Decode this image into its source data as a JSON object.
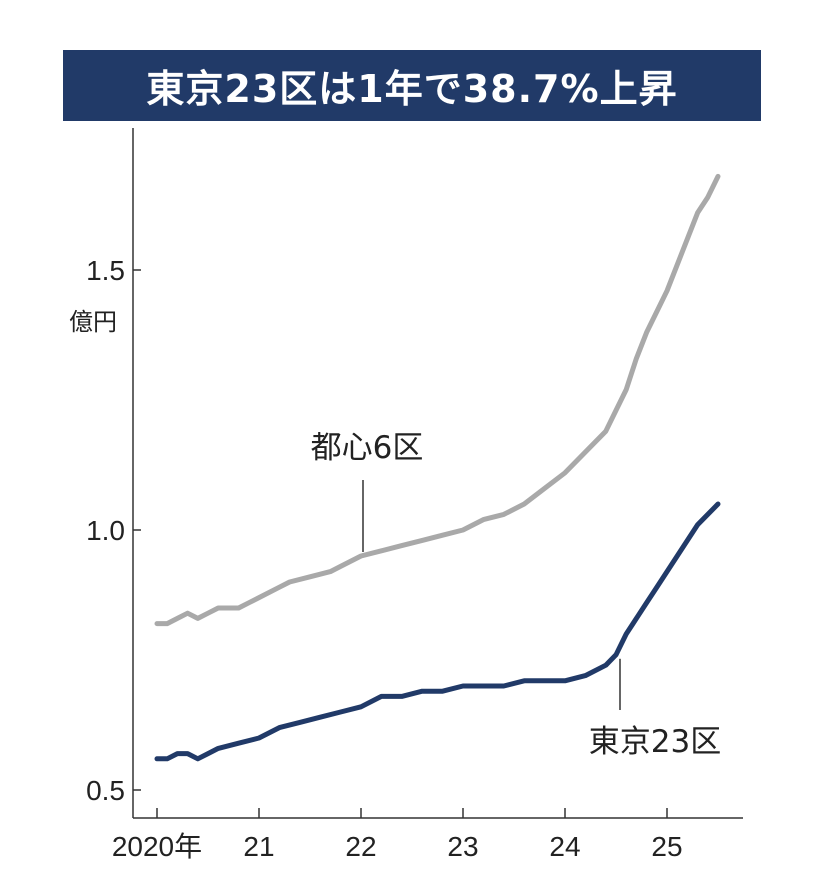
{
  "title": "東京23区は1年で38.7%上昇",
  "colors": {
    "banner": "#213a68",
    "tokyo23": "#213a68",
    "toshin6": "#a9a9a9",
    "axis": "#333333"
  },
  "chart_data": {
    "type": "line",
    "title": "東京23区は1年で38.7%上昇",
    "ylabel": "億円",
    "ylim": [
      0.5,
      1.7
    ],
    "xlim": [
      2020.0,
      2025.7
    ],
    "y_ticks": [
      {
        "value": 0.5,
        "label": "0.5"
      },
      {
        "value": 1.0,
        "label": "1.0"
      },
      {
        "value": 1.5,
        "label": "1.5"
      }
    ],
    "x_ticks": [
      {
        "value": 2020,
        "label": "2020年"
      },
      {
        "value": 2021,
        "label": "21"
      },
      {
        "value": 2022,
        "label": "22"
      },
      {
        "value": 2023,
        "label": "23"
      },
      {
        "value": 2024,
        "label": "24"
      },
      {
        "value": 2025,
        "label": "25"
      }
    ],
    "grid": false,
    "series": [
      {
        "name": "都心6区",
        "color": "#a9a9a9",
        "x": [
          2020.0,
          2020.1,
          2020.2,
          2020.3,
          2020.4,
          2020.5,
          2020.6,
          2020.8,
          2020.9,
          2021.0,
          2021.2,
          2021.3,
          2021.5,
          2021.7,
          2021.8,
          2022.0,
          2022.2,
          2022.4,
          2022.6,
          2022.8,
          2023.0,
          2023.2,
          2023.4,
          2023.6,
          2023.8,
          2024.0,
          2024.2,
          2024.4,
          2024.5,
          2024.6,
          2024.7,
          2024.8,
          2024.9,
          2025.0,
          2025.1,
          2025.2,
          2025.3,
          2025.4,
          2025.5
        ],
        "values": [
          0.82,
          0.82,
          0.83,
          0.84,
          0.83,
          0.84,
          0.85,
          0.85,
          0.86,
          0.87,
          0.89,
          0.9,
          0.91,
          0.92,
          0.93,
          0.95,
          0.96,
          0.97,
          0.98,
          0.99,
          1.0,
          1.02,
          1.03,
          1.05,
          1.08,
          1.11,
          1.15,
          1.19,
          1.23,
          1.27,
          1.33,
          1.38,
          1.42,
          1.46,
          1.51,
          1.56,
          1.61,
          1.64,
          1.68
        ]
      },
      {
        "name": "東京23区",
        "color": "#213a68",
        "x": [
          2020.0,
          2020.1,
          2020.2,
          2020.3,
          2020.4,
          2020.5,
          2020.6,
          2020.8,
          2021.0,
          2021.2,
          2021.4,
          2021.6,
          2021.8,
          2022.0,
          2022.2,
          2022.4,
          2022.6,
          2022.8,
          2023.0,
          2023.2,
          2023.4,
          2023.6,
          2023.8,
          2024.0,
          2024.2,
          2024.4,
          2024.5,
          2024.6,
          2024.7,
          2024.8,
          2024.9,
          2025.0,
          2025.1,
          2025.2,
          2025.3,
          2025.4,
          2025.5
        ],
        "values": [
          0.56,
          0.56,
          0.57,
          0.57,
          0.56,
          0.57,
          0.58,
          0.59,
          0.6,
          0.62,
          0.63,
          0.64,
          0.65,
          0.66,
          0.68,
          0.68,
          0.69,
          0.69,
          0.7,
          0.7,
          0.7,
          0.71,
          0.71,
          0.71,
          0.72,
          0.74,
          0.76,
          0.8,
          0.83,
          0.86,
          0.89,
          0.92,
          0.95,
          0.98,
          1.01,
          1.03,
          1.05
        ]
      }
    ],
    "annotations": [
      {
        "text": "都心6区",
        "series": "都心6区",
        "at_x": 2022.0
      },
      {
        "text": "東京23区",
        "series": "東京23区",
        "at_x": 2024.5
      }
    ]
  }
}
